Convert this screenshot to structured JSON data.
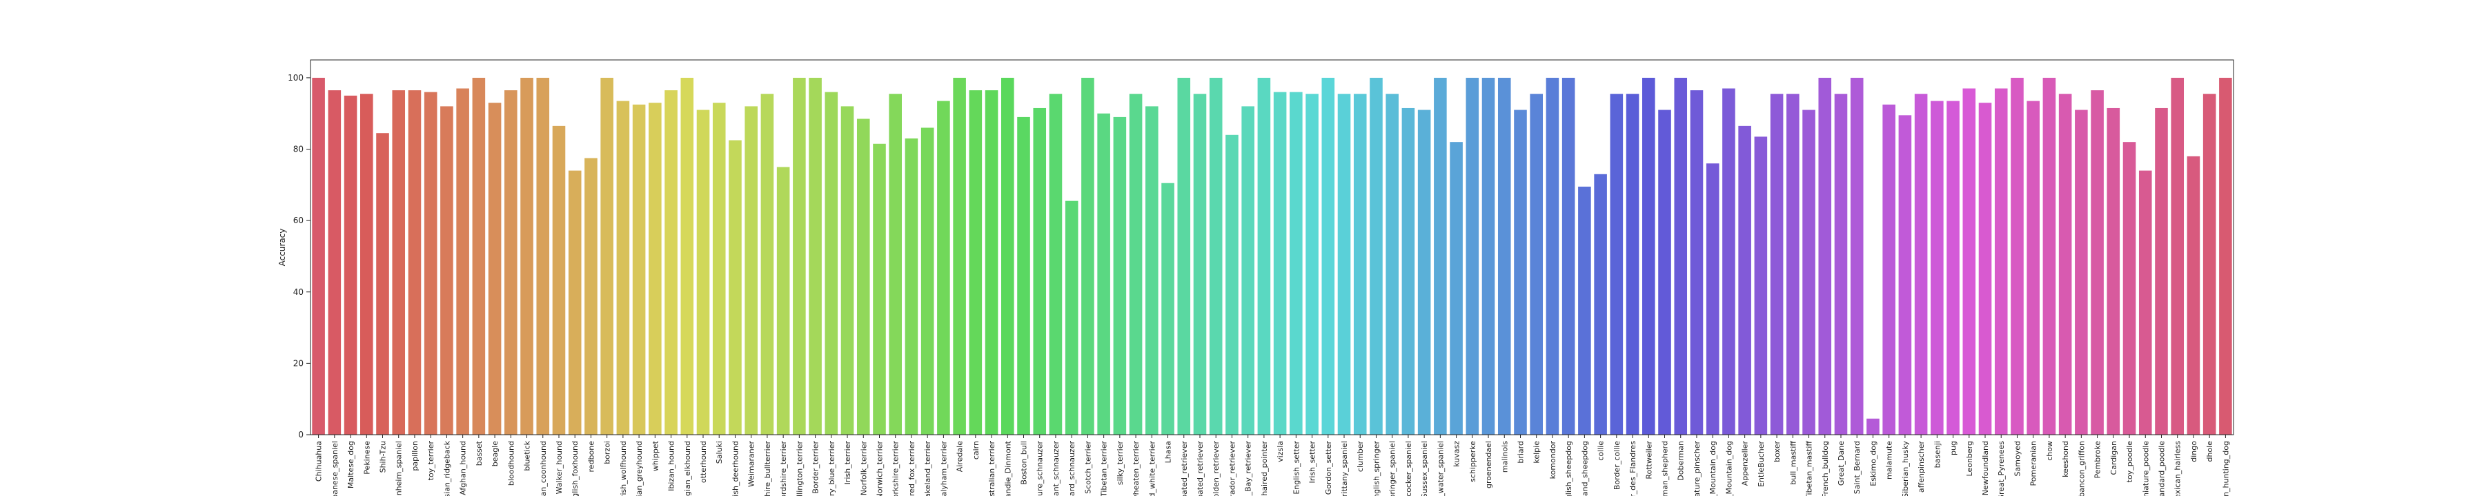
{
  "chart_data": {
    "type": "bar",
    "y_label": "Accuracy",
    "palette": "husl",
    "categories": [
      "Chihuahua",
      "apanese_spaniel",
      "Maltese_dog",
      "Pekinese",
      "Shih-Tzu",
      "lenheim_spaniel",
      "papillon",
      "toy_terrier",
      "esian_ridgeback",
      "Afghan_hound",
      "basset",
      "beagle",
      "bloodhound",
      "bluetick",
      "-tan_coonhound",
      "Walker_hound",
      "nglish_foxhound",
      "redbone",
      "borzoi",
      "Irish_wolfhound",
      "alian_greyhound",
      "whippet",
      "Ibizan_hound",
      "egian_elkhound",
      "otterhound",
      "Saluki",
      "ttish_deerhound",
      "Weimaraner",
      "shire_bullterrier",
      "fordshire_terrier",
      "dlington_terrier",
      "Border_terrier",
      "rry_blue_terrier",
      "Irish_terrier",
      "Norfolk_terrier",
      "Norwich_terrier",
      "Yorkshire_terrier",
      "haired_fox_terrier",
      "Lakeland_terrier",
      "ealyham_terrier",
      "Airedale",
      "cairn",
      "ustralian_terrier",
      "Dandie_Dinmont",
      "Boston_bull",
      "ature_schnauzer",
      "giant_schnauzer",
      "dard_schnauzer",
      "Scotch_terrier",
      "Tibetan_terrier",
      "silky_terrier",
      "wheaten_terrier",
      "nd_white_terrier",
      "Lhasa",
      "coated_retriever",
      "coated_retriever",
      "golden_retriever",
      "brador_retriever",
      "e_Bay_retriever",
      "t-haired_pointer",
      "vizsla",
      "English_setter",
      "Irish_setter",
      "Gordon_setter",
      "Brittany_spaniel",
      "clumber",
      "English_springer",
      "springer_spaniel",
      "cocker_spaniel",
      "Sussex_spaniel",
      "h_water_spaniel",
      "kuvasz",
      "schipperke",
      "groenendael",
      "malinois",
      "briard",
      "kelpie",
      "komondor",
      "glish_sheepdog",
      "tland_sheepdog",
      "collie",
      "Border_collie",
      "er_des_Flandres",
      "Rottweiler",
      "rman_shepherd",
      "Doberman",
      "iature_pinscher",
      "s_Mountain_dog",
      "e_Mountain_dog",
      "Appenzeller",
      "EntleBucher",
      "boxer",
      "bull_mastiff",
      "Tibetan_mastiff",
      "French_bulldog",
      "Great_Dane",
      "Saint_Bernard",
      "Eskimo_dog",
      "malamute",
      "Siberian_husky",
      "affenpinscher",
      "basenji",
      "pug",
      "Leonberg",
      "Newfoundland",
      "Great_Pyrenees",
      "Samoyed",
      "Pomeranian",
      "chow",
      "keeshond",
      "abancon_griffon",
      "Pembroke",
      "Cardigan",
      "toy_poodle",
      "iniature_poodle",
      "standard_poodle",
      "Mexican_hairless",
      "dingo",
      "dhole",
      "an_hunting_dog"
    ],
    "values": [
      100,
      96.5,
      95,
      95.5,
      84.5,
      96.5,
      96.5,
      96,
      92,
      97,
      100,
      93,
      96.5,
      100,
      100,
      86.5,
      74,
      77.5,
      100,
      93.5,
      92.5,
      93,
      96.5,
      100,
      91,
      93,
      82.5,
      92,
      95.5,
      75,
      100,
      100,
      96,
      92,
      88.5,
      81.5,
      95.5,
      83,
      86,
      93.5,
      100,
      96.5,
      96.5,
      100,
      89,
      91.5,
      95.5,
      65.5,
      100,
      90,
      89,
      95.5,
      92,
      70.5,
      100,
      95.5,
      100,
      84,
      92,
      100,
      96,
      96,
      95.5,
      100,
      95.5,
      95.5,
      100,
      95.5,
      91.5,
      91,
      100,
      82,
      100,
      100,
      100,
      91,
      95.5,
      100,
      100,
      69.5,
      73,
      95.5,
      95.5,
      100,
      91,
      100,
      96.5,
      76,
      97,
      86.5,
      83.5,
      95.5,
      95.5,
      91,
      100,
      95.5,
      100,
      4.5,
      92.5,
      89.5,
      95.5,
      93.5,
      93.5,
      97,
      93,
      97,
      100,
      93.5,
      100,
      95.5,
      91,
      96.5,
      91.5,
      82,
      74,
      91.5,
      100,
      78,
      95.5,
      100
    ],
    "ylim": [
      0,
      105
    ],
    "yticks": [
      0,
      20,
      40,
      60,
      80,
      100
    ]
  }
}
